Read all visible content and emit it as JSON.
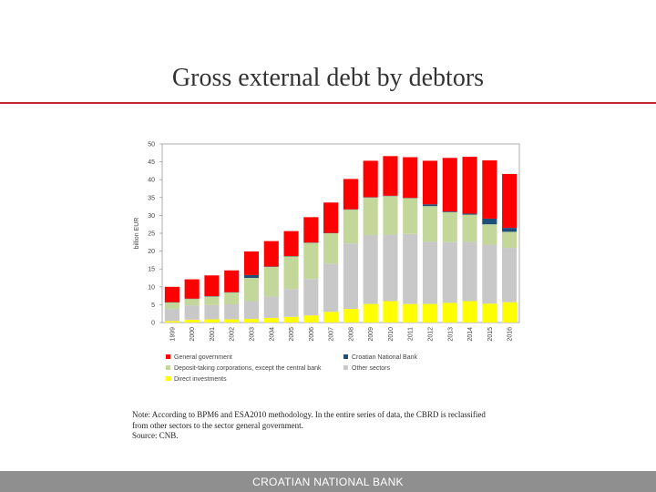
{
  "slide": {
    "title": "Gross external debt by debtors",
    "note_lines": [
      "Note: According to BPM6 and ESA2010 methodology. In the entire series of data, the CBRD is reclassified",
      "from other sectors to the sector general government.",
      "Source: CNB."
    ],
    "footer": "CROATIAN NATIONAL BANK"
  },
  "chart_data": {
    "type": "bar",
    "stacked": true,
    "title": "",
    "xlabel": "",
    "ylabel": "billion EUR",
    "ylim": [
      0,
      50
    ],
    "yticks": [
      0,
      5,
      10,
      15,
      20,
      25,
      30,
      35,
      40,
      45,
      50
    ],
    "grid": false,
    "legend_position": "bottom",
    "categories": [
      "1999",
      "2000",
      "2001",
      "2002",
      "2003",
      "2004",
      "2005",
      "2006",
      "2007",
      "2008",
      "2009",
      "2010",
      "2011",
      "2012",
      "2013",
      "2014",
      "2015",
      "2016"
    ],
    "series": [
      {
        "name": "Direct investments",
        "color": "#ffff00",
        "values": [
          0.4,
          0.8,
          0.9,
          0.9,
          1.0,
          1.3,
          1.6,
          2.0,
          3.0,
          3.8,
          5.2,
          6.0,
          5.2,
          5.2,
          5.5,
          6.0,
          5.3,
          5.7
        ]
      },
      {
        "name": "Other sectors",
        "color": "#c8c8c8",
        "values": [
          3.4,
          4.0,
          4.0,
          4.2,
          5.0,
          6.0,
          7.8,
          10.2,
          13.5,
          18.3,
          19.3,
          18.6,
          19.6,
          17.4,
          17.0,
          16.6,
          16.5,
          15.2
        ]
      },
      {
        "name": "Deposit-taking corporations, except the central bank",
        "color": "#c4d79b",
        "values": [
          1.8,
          1.8,
          2.4,
          3.3,
          6.5,
          8.3,
          9.1,
          10.1,
          8.5,
          9.5,
          10.5,
          10.8,
          10.0,
          10.0,
          8.4,
          7.6,
          5.7,
          4.5
        ]
      },
      {
        "name": "Croatian National Bank",
        "color": "#1f4e79",
        "values": [
          0.1,
          0.1,
          0.1,
          0.1,
          0.8,
          0.1,
          0.1,
          0.1,
          0.1,
          0.1,
          0.1,
          0.1,
          0.1,
          0.5,
          0.2,
          0.3,
          1.6,
          1.1
        ]
      },
      {
        "name": "General government",
        "color": "#ff0000",
        "values": [
          4.3,
          5.4,
          5.8,
          6.1,
          6.6,
          7.1,
          7.0,
          7.1,
          8.5,
          8.5,
          10.2,
          11.1,
          11.4,
          12.2,
          15.0,
          15.9,
          16.3,
          15.1
        ]
      }
    ],
    "legend_layout": [
      [
        "General government",
        "Croatian National Bank"
      ],
      [
        "Deposit-taking corporations, except the central bank",
        "Other sectors"
      ],
      [
        "Direct investments"
      ]
    ]
  }
}
